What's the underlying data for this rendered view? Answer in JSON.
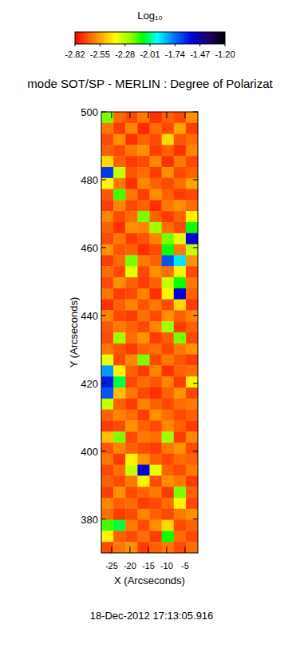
{
  "chart_data": {
    "type": "heatmap",
    "title": "mode SOT/SP - MERLIN : Degree of Polarizat",
    "xlabel": "X (Arcseconds)",
    "ylabel": "Y (Arcseconds)",
    "xlim": [
      -27.8,
      -1.5
    ],
    "ylim": [
      370,
      500
    ],
    "xticks": [
      -25,
      -20,
      -15,
      -10,
      -5
    ],
    "yticks": [
      380,
      400,
      420,
      440,
      460,
      480,
      500
    ],
    "z": [
      [
        -2.2,
        -2.65,
        -2.7,
        -2.62,
        -2.74,
        -2.66,
        -2.7,
        -2.58
      ],
      [
        -2.62,
        -2.72,
        -2.6,
        -2.75,
        -2.64,
        -2.7,
        -2.55,
        -2.72
      ],
      [
        -2.7,
        -2.58,
        -2.74,
        -2.66,
        -2.7,
        -2.45,
        -2.68,
        -2.64
      ],
      [
        -2.66,
        -2.7,
        -2.62,
        -2.58,
        -2.72,
        -2.66,
        -2.74,
        -2.6
      ],
      [
        -2.45,
        -2.66,
        -2.72,
        -2.7,
        -2.6,
        -2.74,
        -2.62,
        -2.7
      ],
      [
        -1.65,
        -2.3,
        -2.68,
        -2.64,
        -2.72,
        -2.58,
        -2.7,
        -2.66
      ],
      [
        -2.4,
        -2.62,
        -2.74,
        -2.6,
        -2.66,
        -2.7,
        -2.64,
        -2.55
      ],
      [
        -2.68,
        -2.15,
        -2.62,
        -2.72,
        -2.58,
        -2.66,
        -2.72,
        -2.7
      ],
      [
        -2.72,
        -2.6,
        -2.7,
        -2.66,
        -2.74,
        -2.62,
        -2.58,
        -2.64
      ],
      [
        -2.6,
        -2.7,
        -2.64,
        -2.2,
        -2.66,
        -2.72,
        -2.66,
        -2.4
      ],
      [
        -2.66,
        -2.74,
        -2.58,
        -2.6,
        -2.25,
        -2.64,
        -2.7,
        -2.1
      ],
      [
        -2.7,
        -2.62,
        -2.72,
        -2.68,
        -2.6,
        -2.2,
        -2.35,
        -1.55
      ],
      [
        -2.58,
        -2.68,
        -2.66,
        -2.74,
        -2.7,
        -2.1,
        -2.62,
        -2.3
      ],
      [
        -2.72,
        -2.64,
        -2.2,
        -2.62,
        -2.66,
        -1.7,
        -1.9,
        -2.58
      ],
      [
        -2.64,
        -2.7,
        -2.35,
        -2.7,
        -2.58,
        -2.64,
        -2.4,
        -2.7
      ],
      [
        -2.7,
        -2.58,
        -2.66,
        -2.72,
        -2.66,
        -2.3,
        -2.1,
        -2.62
      ],
      [
        -2.62,
        -2.72,
        -2.7,
        -2.6,
        -2.74,
        -2.4,
        -1.55,
        -2.66
      ],
      [
        -2.74,
        -2.66,
        -2.6,
        -2.68,
        -2.62,
        -2.7,
        -2.45,
        -2.72
      ],
      [
        -2.6,
        -2.7,
        -2.72,
        -2.64,
        -2.7,
        -2.58,
        -2.66,
        -2.6
      ],
      [
        -2.68,
        -2.62,
        -2.66,
        -2.7,
        -2.6,
        -2.25,
        -2.72,
        -2.66
      ],
      [
        -2.7,
        -2.25,
        -2.64,
        -2.58,
        -2.72,
        -2.66,
        -2.2,
        -2.7
      ],
      [
        -2.62,
        -2.68,
        -2.72,
        -2.66,
        -2.64,
        -2.7,
        -2.62,
        -2.58
      ],
      [
        -2.35,
        -2.7,
        -2.6,
        -2.2,
        -2.7,
        -2.62,
        -2.68,
        -2.72
      ],
      [
        -1.8,
        -2.4,
        -2.66,
        -2.72,
        -2.6,
        -2.74,
        -2.66,
        -2.64
      ],
      [
        -1.6,
        -2.05,
        -2.7,
        -2.64,
        -2.68,
        -2.6,
        -2.72,
        -2.4
      ],
      [
        -1.7,
        -2.5,
        -2.62,
        -2.7,
        -2.74,
        -2.66,
        -2.58,
        -2.7
      ],
      [
        -2.3,
        -2.66,
        -2.72,
        -2.6,
        -2.66,
        -2.7,
        -2.64,
        -2.62
      ],
      [
        -2.66,
        -2.6,
        -2.64,
        -2.72,
        -2.58,
        -2.64,
        -2.7,
        -2.66
      ],
      [
        -2.72,
        -2.7,
        -2.58,
        -2.66,
        -2.7,
        -2.6,
        -2.66,
        -2.72
      ],
      [
        -2.5,
        -2.2,
        -2.7,
        -2.62,
        -2.64,
        -2.25,
        -2.72,
        -2.6
      ],
      [
        -2.68,
        -2.6,
        -2.66,
        -2.7,
        -2.72,
        -2.62,
        -2.58,
        -2.7
      ],
      [
        -2.62,
        -2.72,
        -2.4,
        -2.58,
        -2.66,
        -2.7,
        -2.64,
        -2.66
      ],
      [
        -2.7,
        -2.64,
        -2.3,
        -1.55,
        -2.35,
        -2.66,
        -2.7,
        -2.62
      ],
      [
        -2.66,
        -2.7,
        -2.62,
        -2.4,
        -2.7,
        -2.58,
        -2.62,
        -2.72
      ],
      [
        -2.72,
        -2.58,
        -2.7,
        -2.66,
        -2.62,
        -2.72,
        -2.2,
        -2.66
      ],
      [
        -2.6,
        -2.66,
        -2.64,
        -2.72,
        -2.7,
        -2.64,
        -2.4,
        -2.7
      ],
      [
        -2.64,
        -2.72,
        -2.7,
        -2.6,
        -2.66,
        -2.7,
        -2.62,
        -2.58
      ],
      [
        -2.15,
        -2.05,
        -2.62,
        -2.7,
        -2.58,
        -2.45,
        -2.7,
        -2.66
      ],
      [
        -2.4,
        -2.66,
        -2.7,
        -2.64,
        -2.72,
        -2.1,
        -2.64,
        -2.7
      ],
      [
        -2.7,
        -2.62,
        -2.58,
        -2.72,
        -2.66,
        -2.62,
        -2.7,
        -2.64
      ]
    ],
    "colorbar": {
      "label": "Log₁₀",
      "range": [
        -2.82,
        -1.2
      ],
      "ticks": [
        -2.82,
        -2.55,
        -2.28,
        -2.01,
        -1.74,
        -1.47,
        {
          "value": -1.2,
          "label": "-1.20"
        }
      ]
    },
    "annotations": [
      "18-Dec-2012 17:13:05.916"
    ]
  }
}
